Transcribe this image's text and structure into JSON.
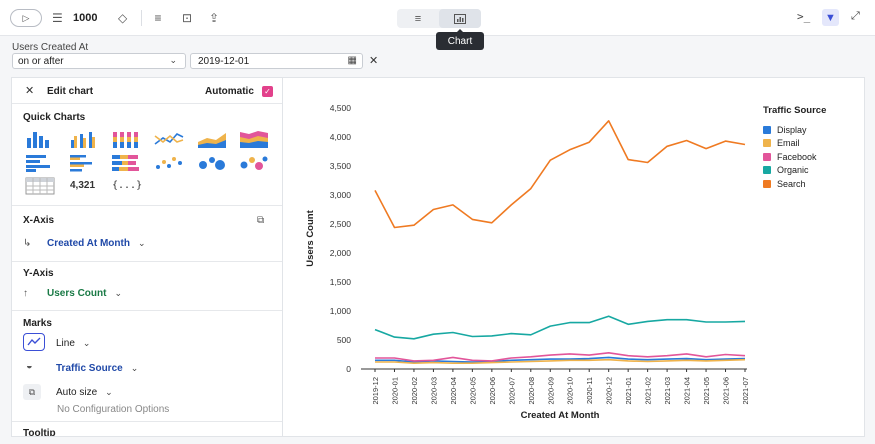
{
  "toolbar": {
    "row_limit": "1000",
    "view_toggle": {
      "text_icon": "align-left-icon",
      "chart_icon": "bar-chart-icon",
      "active": "chart"
    },
    "tooltip": "Chart"
  },
  "filter": {
    "label": "Users Created At",
    "operator": "on or after",
    "date_value": "2019-12-01"
  },
  "left_panel": {
    "title": "Edit chart",
    "automatic_label": "Automatic",
    "automatic_checked": true,
    "quick_charts_title": "Quick Charts",
    "quick_chart_number": "4,321",
    "quick_chart_json": "{...}",
    "x_axis_title": "X-Axis",
    "x_axis_field": "Created At Month",
    "y_axis_title": "Y-Axis",
    "y_axis_field": "Users Count",
    "marks_title": "Marks",
    "mark_type": "Line",
    "color_field": "Traffic Source",
    "size_label": "Auto size",
    "no_config": "No Configuration Options",
    "tooltip_title": "Tooltip"
  },
  "chart_data": {
    "type": "line",
    "xlabel": "Created At Month",
    "ylabel": "Users Count",
    "ylim": [
      0,
      4500
    ],
    "yticks": [
      0,
      500,
      1000,
      1500,
      2000,
      2500,
      3000,
      3500,
      4000,
      4500
    ],
    "ytick_labels": [
      "0",
      "500",
      "1,000",
      "1,500",
      "2,000",
      "2,500",
      "3,000",
      "3,500",
      "4,000",
      "4,500"
    ],
    "legend_title": "Traffic Source",
    "legend_placement": "right",
    "x": [
      "2019-12",
      "2020-01",
      "2020-02",
      "2020-03",
      "2020-04",
      "2020-05",
      "2020-06",
      "2020-07",
      "2020-08",
      "2020-09",
      "2020-10",
      "2020-11",
      "2020-12",
      "2021-01",
      "2021-02",
      "2021-03",
      "2021-04",
      "2021-05",
      "2021-06",
      "2021-07"
    ],
    "series": [
      {
        "name": "Display",
        "color": "#2a7ad9",
        "values": [
          150,
          150,
          120,
          140,
          130,
          120,
          130,
          150,
          160,
          170,
          170,
          180,
          200,
          170,
          160,
          170,
          180,
          160,
          170,
          180
        ]
      },
      {
        "name": "Email",
        "color": "#efb34b",
        "values": [
          120,
          120,
          100,
          110,
          100,
          100,
          110,
          120,
          130,
          140,
          150,
          150,
          160,
          140,
          130,
          140,
          150,
          140,
          150,
          160
        ]
      },
      {
        "name": "Facebook",
        "color": "#e2559a",
        "values": [
          190,
          190,
          140,
          150,
          200,
          150,
          140,
          190,
          210,
          240,
          260,
          240,
          280,
          230,
          210,
          230,
          260,
          210,
          250,
          230
        ]
      },
      {
        "name": "Organic",
        "color": "#17a8a2",
        "values": [
          680,
          550,
          520,
          600,
          630,
          560,
          570,
          610,
          590,
          740,
          800,
          800,
          910,
          770,
          820,
          850,
          850,
          810,
          810,
          820
        ]
      },
      {
        "name": "Search",
        "color": "#ef7a22",
        "values": [
          3080,
          2440,
          2480,
          2750,
          2830,
          2580,
          2520,
          2830,
          3110,
          3600,
          3780,
          3910,
          4280,
          3610,
          3560,
          3840,
          3940,
          3800,
          3930,
          3870
        ]
      }
    ]
  }
}
